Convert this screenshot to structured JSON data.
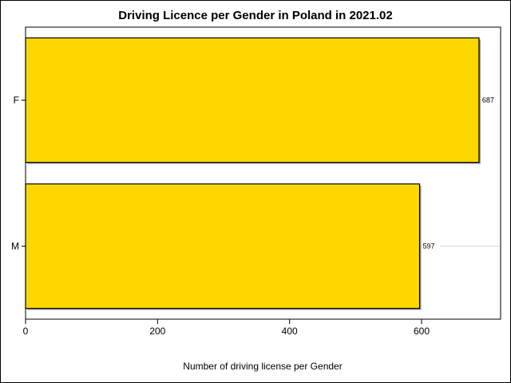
{
  "chart_data": {
    "type": "bar",
    "orientation": "horizontal",
    "title": "Driving Licence per Gender in Poland in 2021.02",
    "xlabel": "Number of driving license per Gender",
    "ylabel": "",
    "categories": [
      "F",
      "M"
    ],
    "values": [
      687,
      597
    ],
    "data_labels": [
      "687",
      "597"
    ],
    "xlim": [
      0,
      720
    ],
    "x_ticks": [
      0,
      200,
      400,
      600
    ],
    "x_tick_labels": [
      "0",
      "200",
      "400",
      "600"
    ],
    "grid": false,
    "legend": "none",
    "colors": {
      "bar_fill": "#FFD700",
      "bar_edge": "#000000",
      "bar_shadow": "#9c9c9c",
      "ref_line": "#d9d9d9"
    }
  }
}
